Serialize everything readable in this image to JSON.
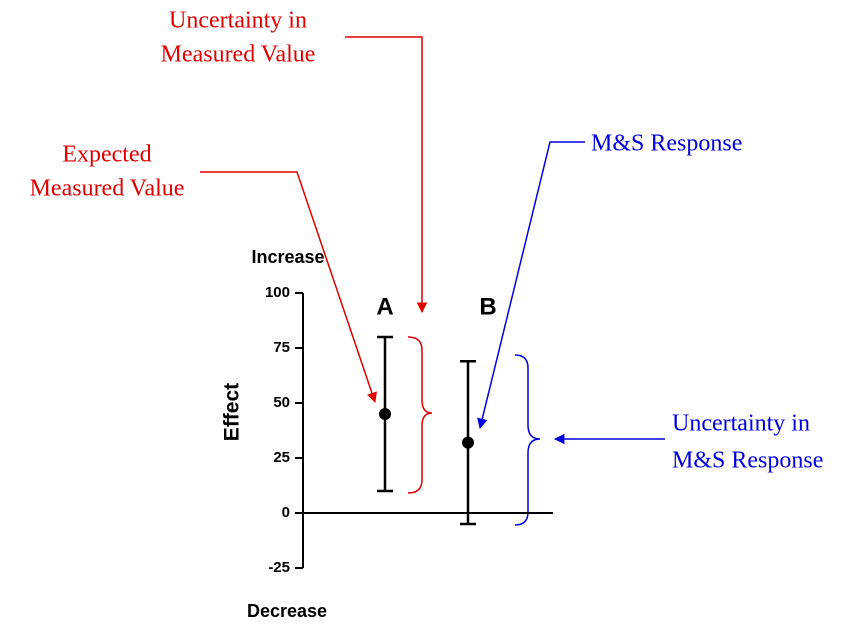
{
  "chart_data": {
    "type": "errorbar",
    "categories": [
      "A",
      "B"
    ],
    "values": [
      45,
      32
    ],
    "lower": [
      10,
      -5
    ],
    "upper": [
      80,
      69
    ],
    "color": "#000000",
    "ylabel": "Effect",
    "ylim": [
      -25,
      100
    ],
    "yticks": [
      -25,
      0,
      25,
      50,
      75,
      100
    ],
    "top_label": "Increase",
    "bottom_label": "Decrease",
    "annotations": [
      {
        "lines": [
          "Uncertainty in",
          "Measured Value"
        ],
        "color": "#e00000"
      },
      {
        "lines": [
          "Expected",
          "Measured Value"
        ],
        "color": "#e00000"
      },
      {
        "lines": [
          "M&S Response"
        ],
        "color": "#0000e0"
      },
      {
        "lines": [
          "Uncertainty in",
          "M&S Response"
        ],
        "color": "#0000e0"
      }
    ]
  }
}
